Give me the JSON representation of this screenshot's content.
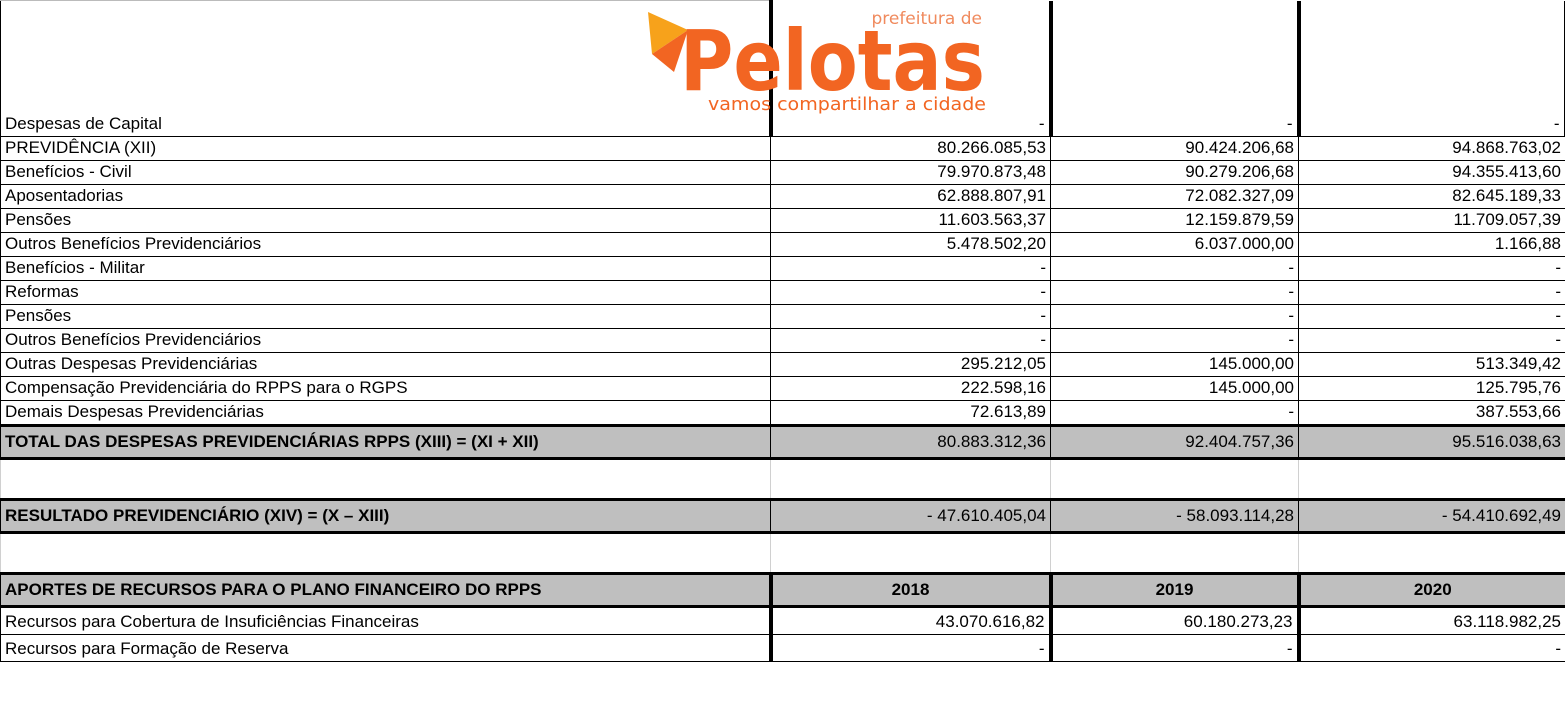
{
  "logo": {
    "top": "prefeitura de",
    "name": "Pelotas",
    "tagline": "vamos compartilhar a cidade"
  },
  "table": {
    "header": [
      "Despesas de Capital",
      "-",
      "-",
      "-"
    ],
    "rows": [
      [
        "PREVIDÊNCIA (XII)",
        "80.266.085,53",
        "90.424.206,68",
        "94.868.763,02"
      ],
      [
        "Benefícios - Civil",
        "79.970.873,48",
        "90.279.206,68",
        "94.355.413,60"
      ],
      [
        "Aposentadorias",
        "62.888.807,91",
        "72.082.327,09",
        "82.645.189,33"
      ],
      [
        "Pensões",
        "11.603.563,37",
        "12.159.879,59",
        "11.709.057,39"
      ],
      [
        "Outros Benefícios Previdenciários",
        "5.478.502,20",
        "6.037.000,00",
        "1.166,88"
      ],
      [
        "Benefícios - Militar",
        "-",
        "-",
        "-"
      ],
      [
        "Reformas",
        "-",
        "-",
        "-"
      ],
      [
        "Pensões",
        "-",
        "-",
        "-"
      ],
      [
        "Outros Benefícios Previdenciários",
        "-",
        "-",
        "-"
      ],
      [
        "Outras Despesas Previdenciárias",
        "295.212,05",
        "145.000,00",
        "513.349,42"
      ],
      [
        "Compensação Previdenciária do RPPS para o RGPS",
        "222.598,16",
        "145.000,00",
        "125.795,76"
      ],
      [
        "Demais Despesas Previdenciárias",
        "72.613,89",
        "-",
        "387.553,66"
      ]
    ],
    "total": [
      "TOTAL DAS DESPESAS PREVIDENCIÁRIAS RPPS (XIII) = (XI + XII)",
      "80.883.312,36",
      "92.404.757,36",
      "95.516.038,63"
    ],
    "result": [
      "RESULTADO PREVIDENCIÁRIO (XIV) = (X – XIII)",
      "- 47.610.405,04",
      "- 58.093.114,28",
      "- 54.410.692,49"
    ],
    "aportes_header": [
      "APORTES DE RECURSOS PARA O PLANO FINANCEIRO DO RPPS",
      "2018",
      "2019",
      "2020"
    ],
    "aportes": [
      [
        "Recursos para Cobertura de Insuficiências Financeiras",
        "43.070.616,82",
        "60.180.273,23",
        "63.118.982,25"
      ],
      [
        "Recursos para Formação de Reserva",
        "-",
        "-",
        "-"
      ]
    ]
  }
}
